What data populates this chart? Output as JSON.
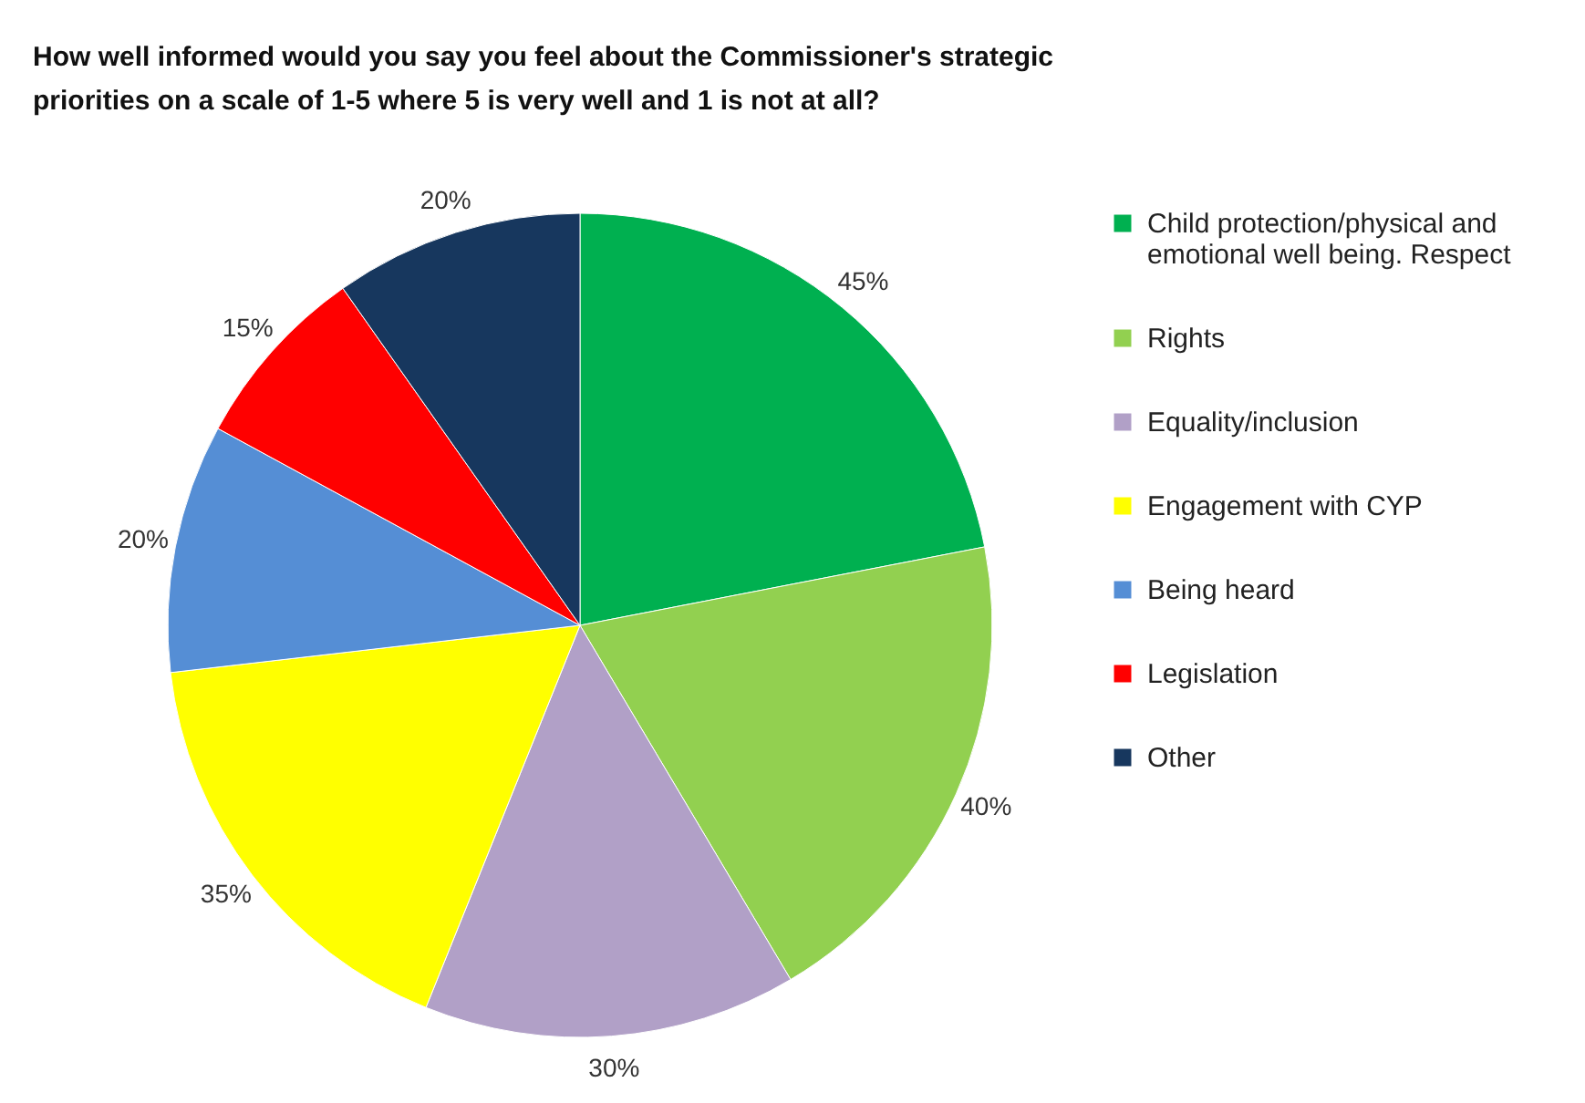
{
  "chart_data": {
    "type": "pie",
    "title": "How well informed would you say you feel about the Commissioner's strategic priorities on a scale of 1-5 where 5 is very well and 1 is not at all?",
    "categories": [
      "Child protection/physical and emotional well being. Respect",
      "Rights",
      "Equality/inclusion",
      "Engagement with CYP",
      "Being heard",
      "Legislation",
      "Other"
    ],
    "values": [
      45,
      40,
      30,
      35,
      20,
      15,
      20
    ],
    "value_labels": [
      "45%",
      "40%",
      "30%",
      "35%",
      "20%",
      "15%",
      "20%"
    ],
    "colors": [
      "#00b050",
      "#92d050",
      "#b1a0c7",
      "#ffff00",
      "#558ed5",
      "#ff0000",
      "#17375e"
    ],
    "legend": "right"
  }
}
